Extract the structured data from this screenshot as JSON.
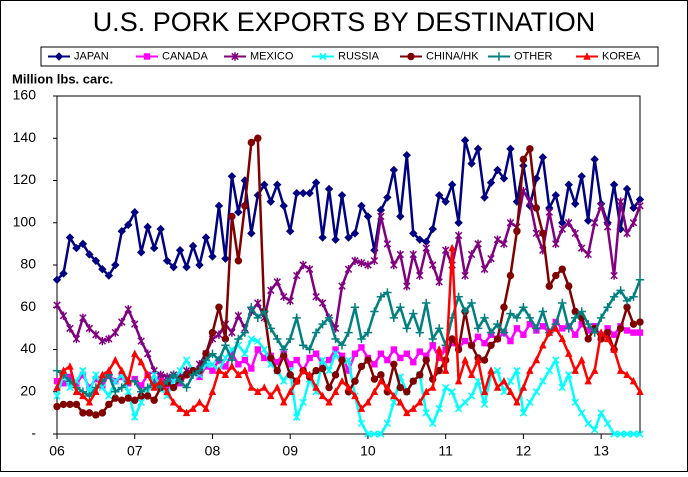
{
  "chart_data": {
    "type": "line",
    "title": "U.S. PORK EXPORTS BY DESTINATION",
    "y_label": "Million lbs. carc.",
    "categories": [
      "06",
      null,
      null,
      null,
      null,
      null,
      null,
      null,
      null,
      null,
      null,
      null,
      "07",
      null,
      null,
      null,
      null,
      null,
      null,
      null,
      null,
      null,
      null,
      null,
      "08",
      null,
      null,
      null,
      null,
      null,
      null,
      null,
      null,
      null,
      null,
      null,
      "09",
      null,
      null,
      null,
      null,
      null,
      null,
      null,
      null,
      null,
      null,
      null,
      "10",
      null,
      null,
      null,
      null,
      null,
      null,
      null,
      null,
      null,
      null,
      null,
      "11",
      null,
      null,
      null,
      null,
      null,
      null,
      null,
      null,
      null,
      null,
      null,
      "12",
      null,
      null,
      null,
      null,
      null,
      null,
      null,
      null,
      null,
      null,
      null,
      "13",
      null,
      null,
      null,
      null,
      null,
      null
    ],
    "ylim": [
      0,
      160
    ],
    "yticks": [
      {
        "value": 0,
        "label": "-"
      },
      20,
      40,
      60,
      80,
      100,
      120,
      140,
      160
    ],
    "grid": false,
    "series": [
      {
        "name": "JAPAN",
        "color": "#000080",
        "marker": "diamond",
        "values": [
          73,
          76,
          93,
          88,
          90,
          85,
          82,
          78,
          75,
          80,
          96,
          99,
          105,
          86,
          98,
          88,
          97,
          82,
          79,
          87,
          79,
          89,
          80,
          93,
          84,
          108,
          83,
          122,
          105,
          120,
          95,
          113,
          118,
          110,
          118,
          108,
          96,
          114,
          114,
          114,
          119,
          93,
          116,
          92,
          113,
          93,
          95,
          108,
          103,
          87,
          106,
          112,
          125,
          103,
          132,
          95,
          92,
          91,
          97,
          113,
          110,
          118,
          100,
          139,
          128,
          135,
          112,
          119,
          125,
          121,
          135,
          110,
          127,
          108,
          121,
          131,
          107,
          113,
          100,
          118,
          109,
          122,
          101,
          130,
          109,
          100,
          118,
          97,
          116,
          107,
          111
        ]
      },
      {
        "name": "CANADA",
        "color": "#ff00ff",
        "marker": "square",
        "values": [
          25,
          24,
          27,
          24,
          28,
          22,
          26,
          23,
          28,
          25,
          27,
          24,
          26,
          23,
          28,
          25,
          27,
          22,
          26,
          24,
          28,
          30,
          27,
          32,
          30,
          35,
          32,
          38,
          33,
          35,
          31,
          40,
          36,
          37,
          34,
          38,
          33,
          35,
          30,
          36,
          38,
          33,
          35,
          40,
          37,
          30,
          38,
          41,
          36,
          33,
          38,
          35,
          40,
          36,
          38,
          34,
          39,
          37,
          42,
          36,
          40,
          43,
          41,
          44,
          42,
          46,
          43,
          47,
          45,
          48,
          44,
          50,
          47,
          52,
          49,
          51,
          48,
          53,
          50,
          51,
          47,
          52,
          49,
          51,
          46,
          50,
          47,
          51,
          49,
          48,
          48
        ]
      },
      {
        "name": "MEXICO",
        "color": "#800080",
        "marker": "star",
        "values": [
          61,
          56,
          50,
          45,
          55,
          50,
          47,
          44,
          45,
          48,
          53,
          59,
          52,
          44,
          38,
          30,
          28,
          27,
          28,
          27,
          30,
          29,
          33,
          38,
          45,
          47,
          52,
          48,
          56,
          50,
          58,
          62,
          55,
          68,
          72,
          65,
          63,
          75,
          80,
          78,
          65,
          62,
          55,
          50,
          70,
          78,
          82,
          81,
          80,
          82,
          103,
          90,
          80,
          85,
          70,
          85,
          75,
          88,
          80,
          72,
          87,
          80,
          94,
          75,
          85,
          90,
          78,
          83,
          92,
          90,
          100,
          98,
          115,
          110,
          95,
          87,
          105,
          90,
          97,
          100,
          95,
          88,
          85,
          100,
          108,
          98,
          75,
          110,
          95,
          100,
          108
        ]
      },
      {
        "name": "RUSSIA",
        "color": "#00ffff",
        "marker": "x",
        "values": [
          18,
          28,
          22,
          25,
          30,
          20,
          28,
          22,
          18,
          25,
          28,
          20,
          8,
          15,
          20,
          28,
          22,
          18,
          25,
          30,
          35,
          30,
          28,
          33,
          33,
          30,
          36,
          40,
          42,
          38,
          45,
          44,
          40,
          33,
          30,
          25,
          30,
          8,
          15,
          26,
          20,
          35,
          30,
          38,
          33,
          35,
          18,
          5,
          0,
          0,
          0,
          5,
          15,
          27,
          20,
          25,
          28,
          10,
          5,
          12,
          22,
          20,
          12,
          15,
          18,
          25,
          14,
          28,
          30,
          20,
          25,
          30,
          10,
          15,
          20,
          25,
          30,
          35,
          22,
          28,
          15,
          10,
          5,
          2,
          10,
          5,
          0,
          0,
          0,
          0,
          0
        ]
      },
      {
        "name": "CHINA/HK",
        "color": "#800000",
        "marker": "circle",
        "values": [
          13,
          14,
          14,
          14,
          10,
          10,
          9,
          10,
          14,
          17,
          16,
          17,
          16,
          18,
          18,
          16,
          22,
          24,
          22,
          26,
          28,
          30,
          30,
          38,
          48,
          60,
          45,
          103,
          82,
          108,
          138,
          140,
          58,
          36,
          30,
          37,
          28,
          25,
          30,
          27,
          30,
          31,
          22,
          28,
          35,
          20,
          25,
          32,
          35,
          26,
          28,
          20,
          33,
          22,
          20,
          25,
          28,
          35,
          26,
          30,
          35,
          45,
          40,
          58,
          42,
          36,
          35,
          42,
          45,
          60,
          75,
          96,
          130,
          135,
          107,
          95,
          70,
          75,
          78,
          70,
          58,
          55,
          45,
          50,
          45,
          48,
          40,
          50,
          60,
          52,
          53
        ]
      },
      {
        "name": "OTHER",
        "color": "#008080",
        "marker": "plus",
        "values": [
          30,
          28,
          25,
          22,
          20,
          18,
          22,
          25,
          28,
          20,
          22,
          25,
          25,
          20,
          22,
          24,
          22,
          25,
          28,
          25,
          22,
          28,
          30,
          35,
          38,
          35,
          42,
          35,
          45,
          48,
          60,
          55,
          58,
          50,
          45,
          40,
          45,
          55,
          42,
          40,
          48,
          52,
          55,
          45,
          42,
          48,
          60,
          45,
          48,
          58,
          65,
          67,
          55,
          60,
          50,
          57,
          48,
          62,
          45,
          50,
          42,
          55,
          65,
          58,
          62,
          50,
          55,
          48,
          52,
          48,
          57,
          55,
          60,
          55,
          50,
          58,
          48,
          52,
          62,
          50,
          55,
          58,
          52,
          48,
          55,
          60,
          65,
          68,
          63,
          65,
          73
        ]
      },
      {
        "name": "KOREA",
        "color": "#ff0000",
        "marker": "triangle",
        "values": [
          22,
          30,
          32,
          20,
          18,
          15,
          20,
          28,
          30,
          35,
          30,
          25,
          38,
          34,
          28,
          22,
          25,
          20,
          15,
          12,
          10,
          12,
          15,
          12,
          20,
          30,
          28,
          32,
          28,
          30,
          22,
          20,
          22,
          18,
          22,
          15,
          20,
          25,
          30,
          28,
          22,
          18,
          15,
          20,
          25,
          22,
          18,
          12,
          15,
          20,
          25,
          22,
          18,
          15,
          10,
          12,
          15,
          20,
          22,
          40,
          30,
          88,
          25,
          35,
          28,
          35,
          20,
          30,
          22,
          25,
          20,
          15,
          22,
          30,
          35,
          42,
          48,
          50,
          45,
          38,
          30,
          35,
          25,
          30,
          48,
          45,
          40,
          30,
          28,
          25,
          20
        ]
      }
    ]
  }
}
